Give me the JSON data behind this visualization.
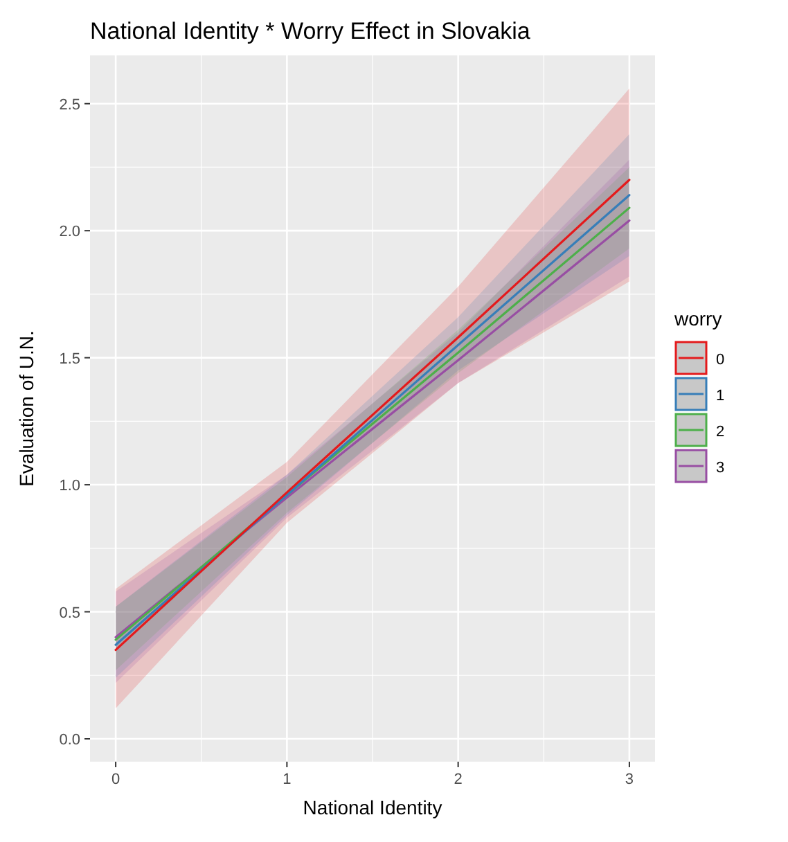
{
  "chart_data": {
    "type": "line",
    "title": "National Identity * Worry Effect in Slovakia",
    "xlabel": "National Identity",
    "ylabel": "Evaluation of U.N.",
    "legend_title": "worry",
    "legend": "right",
    "grid": true,
    "line_style": "solid",
    "xlim": [
      -0.15,
      3.15
    ],
    "xticks": [
      0,
      1,
      2,
      3
    ],
    "ylim": [
      -0.09,
      2.69
    ],
    "yticks": [
      {
        "value": 0,
        "label": "0.0"
      },
      {
        "value": 0.5,
        "label": "0.5"
      },
      {
        "value": 1,
        "label": "1.0"
      },
      {
        "value": 1.5,
        "label": "1.5"
      },
      {
        "value": 2,
        "label": "2.0"
      },
      {
        "value": 2.5,
        "label": "2.5"
      }
    ],
    "x": [
      0,
      1,
      2,
      3
    ],
    "series": [
      {
        "name": "0",
        "color": "#e41a1c",
        "values": [
          0.35,
          0.97,
          1.58,
          2.2
        ],
        "lower": [
          0.12,
          0.85,
          1.4,
          1.8
        ],
        "upper": [
          0.59,
          1.09,
          1.78,
          2.56
        ]
      },
      {
        "name": "1",
        "color": "#377eb8",
        "values": [
          0.37,
          0.96,
          1.55,
          2.14
        ],
        "lower": [
          0.24,
          0.88,
          1.45,
          1.9
        ],
        "upper": [
          0.52,
          1.04,
          1.66,
          2.38
        ]
      },
      {
        "name": "2",
        "color": "#4daf4a",
        "values": [
          0.39,
          0.96,
          1.52,
          2.09
        ],
        "lower": [
          0.27,
          0.89,
          1.44,
          1.93
        ],
        "upper": [
          0.52,
          1.03,
          1.61,
          2.25
        ]
      },
      {
        "name": "3",
        "color": "#984ea3",
        "values": [
          0.4,
          0.95,
          1.49,
          2.04
        ],
        "lower": [
          0.22,
          0.87,
          1.4,
          1.82
        ],
        "upper": [
          0.58,
          1.04,
          1.6,
          2.28
        ]
      }
    ]
  }
}
